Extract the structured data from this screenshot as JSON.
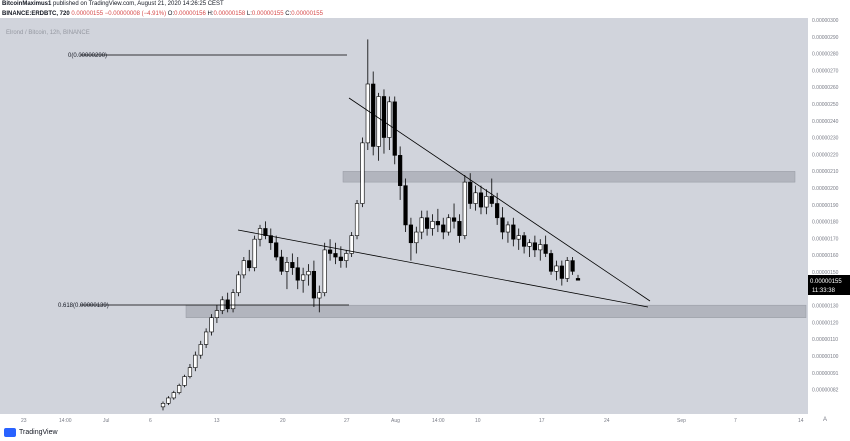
{
  "header": {
    "author": "BitcoinMaximus1",
    "published_text": "published on TradingView.com, August 21, 2020 14:26:25 CEST",
    "symbol": "BINANCE:ERDBTC, 720",
    "price": "0.00000155",
    "change": "−0.00000008 (−4.91%)",
    "open_label": "O:",
    "open": "0.00000156",
    "high_label": "H:",
    "high": "0.00000158",
    "low_label": "L:",
    "low": "0.00000155",
    "close_label": "C:",
    "close": "0.00000155"
  },
  "legend": {
    "title": "Elrond / Bitcoin, 12h, BINANCE"
  },
  "fib": {
    "top_label": "0(0.00000290)",
    "bottom_label": "0.618(0.00000139)"
  },
  "price_badge": {
    "value": "0.00000155",
    "countdown": "11:33:38"
  },
  "footer": {
    "brand": "TradingView"
  },
  "colors": {
    "up": "#ffffff",
    "down": "#000000",
    "background": "#d1d4dc",
    "zone": "#b2b5be",
    "price_badge": "#000000"
  },
  "chart_data": {
    "type": "candlestick",
    "title": "Elrond / Bitcoin, 12h, BINANCE",
    "price_axis": {
      "ticks": [
        "0.00000300",
        "0.00000290",
        "0.00000280",
        "0.00000270",
        "0.00000260",
        "0.00000250",
        "0.00000240",
        "0.00000230",
        "0.00000220",
        "0.00000210",
        "0.00000200",
        "0.00000190",
        "0.00000180",
        "0.00000170",
        "0.00000160",
        "0.00000150",
        "0.00000140",
        "0.00000130",
        "0.00000120",
        "0.00000110",
        "0.00000100",
        "0.00000091",
        "0.00000082"
      ],
      "ylim": [
        8e-07,
        3.02e-06
      ]
    },
    "time_axis": {
      "ticks": [
        "23",
        "14:00",
        "Jul",
        "6",
        "13",
        "20",
        "27",
        "Aug",
        "14:00",
        "10",
        "17",
        "24",
        "Sep",
        "7",
        "14"
      ]
    },
    "candles": [
      [
        8.4e-07,
        8.7e-07,
        8.2e-07,
        8.6e-07
      ],
      [
        8.6e-07,
        9e-07,
        8.5e-07,
        8.9e-07
      ],
      [
        8.9e-07,
        9.3e-07,
        8.8e-07,
        9.2e-07
      ],
      [
        9.2e-07,
        9.7e-07,
        9.1e-07,
        9.6e-07
      ],
      [
        9.6e-07,
        1.02e-06,
        9.5e-07,
        1.01e-06
      ],
      [
        1.01e-06,
        1.08e-06,
        1e-06,
        1.06e-06
      ],
      [
        1.06e-06,
        1.15e-06,
        1.04e-06,
        1.13e-06
      ],
      [
        1.13e-06,
        1.21e-06,
        1.11e-06,
        1.19e-06
      ],
      [
        1.19e-06,
        1.28e-06,
        1.17e-06,
        1.26e-06
      ],
      [
        1.26e-06,
        1.36e-06,
        1.24e-06,
        1.34e-06
      ],
      [
        1.34e-06,
        1.41e-06,
        1.31e-06,
        1.38e-06
      ],
      [
        1.38e-06,
        1.46e-06,
        1.36e-06,
        1.44e-06
      ],
      [
        1.44e-06,
        1.48e-06,
        1.37e-06,
        1.39e-06
      ],
      [
        1.39e-06,
        1.5e-06,
        1.37e-06,
        1.48e-06
      ],
      [
        1.48e-06,
        1.6e-06,
        1.46e-06,
        1.58e-06
      ],
      [
        1.58e-06,
        1.68e-06,
        1.56e-06,
        1.66e-06
      ],
      [
        1.66e-06,
        1.72e-06,
        1.6e-06,
        1.62e-06
      ],
      [
        1.62e-06,
        1.8e-06,
        1.6e-06,
        1.78e-06
      ],
      [
        1.78e-06,
        1.86e-06,
        1.74e-06,
        1.84e-06
      ],
      [
        1.84e-06,
        1.88e-06,
        1.78e-06,
        1.8e-06
      ],
      [
        1.8e-06,
        1.84e-06,
        1.72e-06,
        1.76e-06
      ],
      [
        1.76e-06,
        1.8e-06,
        1.66e-06,
        1.68e-06
      ],
      [
        1.68e-06,
        1.72e-06,
        1.58e-06,
        1.6e-06
      ],
      [
        1.6e-06,
        1.68e-06,
        1.5e-06,
        1.65e-06
      ],
      [
        1.65e-06,
        1.7e-06,
        1.58e-06,
        1.62e-06
      ],
      [
        1.62e-06,
        1.68e-06,
        1.5e-06,
        1.55e-06
      ],
      [
        1.55e-06,
        1.62e-06,
        1.48e-06,
        1.58e-06
      ],
      [
        1.58e-06,
        1.64e-06,
        1.52e-06,
        1.6e-06
      ],
      [
        1.6e-06,
        1.66e-06,
        1.4e-06,
        1.45e-06
      ],
      [
        1.45e-06,
        1.52e-06,
        1.37e-06,
        1.48e-06
      ],
      [
        1.48e-06,
        1.76e-06,
        1.46e-06,
        1.72e-06
      ],
      [
        1.72e-06,
        1.78e-06,
        1.66e-06,
        1.7e-06
      ],
      [
        1.7e-06,
        1.76e-06,
        1.64e-06,
        1.68e-06
      ],
      [
        1.68e-06,
        1.74e-06,
        1.62e-06,
        1.66e-06
      ],
      [
        1.66e-06,
        1.72e-06,
        1.62e-06,
        1.7e-06
      ],
      [
        1.7e-06,
        1.82e-06,
        1.68e-06,
        1.8e-06
      ],
      [
        1.8e-06,
        2e-06,
        1.78e-06,
        1.98e-06
      ],
      [
        1.98e-06,
        2.35e-06,
        1.96e-06,
        2.32e-06
      ],
      [
        2.32e-06,
        2.9e-06,
        2.28e-06,
        2.65e-06
      ],
      [
        2.65e-06,
        2.72e-06,
        2.25e-06,
        2.3e-06
      ],
      [
        2.3e-06,
        2.6e-06,
        2.22e-06,
        2.58e-06
      ],
      [
        2.58e-06,
        2.62e-06,
        2.26e-06,
        2.35e-06
      ],
      [
        2.35e-06,
        2.58e-06,
        2.28e-06,
        2.55e-06
      ],
      [
        2.55e-06,
        2.58e-06,
        2.2e-06,
        2.25e-06
      ],
      [
        2.25e-06,
        2.3e-06,
        2e-06,
        2.08e-06
      ],
      [
        2.08e-06,
        2.12e-06,
        1.82e-06,
        1.86e-06
      ],
      [
        1.86e-06,
        1.9e-06,
        1.66e-06,
        1.76e-06
      ],
      [
        1.76e-06,
        1.85e-06,
        1.7e-06,
        1.82e-06
      ],
      [
        1.82e-06,
        1.94e-06,
        1.78e-06,
        1.9e-06
      ],
      [
        1.9e-06,
        1.94e-06,
        1.8e-06,
        1.84e-06
      ],
      [
        1.84e-06,
        1.92e-06,
        1.8e-06,
        1.88e-06
      ],
      [
        1.88e-06,
        1.95e-06,
        1.82e-06,
        1.86e-06
      ],
      [
        1.86e-06,
        1.9e-06,
        1.78e-06,
        1.82e-06
      ],
      [
        1.82e-06,
        1.92e-06,
        1.8e-06,
        1.9e-06
      ],
      [
        1.9e-06,
        1.98e-06,
        1.84e-06,
        1.88e-06
      ],
      [
        1.88e-06,
        1.92e-06,
        1.76e-06,
        1.8e-06
      ],
      [
        1.8e-06,
        2.14e-06,
        1.78e-06,
        2.1e-06
      ],
      [
        2.1e-06,
        2.15e-06,
        1.95e-06,
        1.98e-06
      ],
      [
        1.98e-06,
        2.08e-06,
        1.94e-06,
        2.04e-06
      ],
      [
        2.04e-06,
        2.08e-06,
        1.92e-06,
        1.96e-06
      ],
      [
        1.96e-06,
        2.06e-06,
        1.92e-06,
        2.02e-06
      ],
      [
        2.02e-06,
        2.12e-06,
        1.96e-06,
        1.98e-06
      ],
      [
        1.98e-06,
        2.04e-06,
        1.86e-06,
        1.9e-06
      ],
      [
        1.9e-06,
        1.96e-06,
        1.78e-06,
        1.82e-06
      ],
      [
        1.82e-06,
        1.88e-06,
        1.76e-06,
        1.86e-06
      ],
      [
        1.86e-06,
        1.9e-06,
        1.74e-06,
        1.78e-06
      ],
      [
        1.78e-06,
        1.84e-06,
        1.72e-06,
        1.8e-06
      ],
      [
        1.8e-06,
        1.82e-06,
        1.7e-06,
        1.74e-06
      ],
      [
        1.74e-06,
        1.78e-06,
        1.68e-06,
        1.76e-06
      ],
      [
        1.76e-06,
        1.8e-06,
        1.68e-06,
        1.72e-06
      ],
      [
        1.72e-06,
        1.78e-06,
        1.66e-06,
        1.75e-06
      ],
      [
        1.75e-06,
        1.8e-06,
        1.68e-06,
        1.7e-06
      ],
      [
        1.7e-06,
        1.72e-06,
        1.58e-06,
        1.6e-06
      ],
      [
        1.6e-06,
        1.66e-06,
        1.55e-06,
        1.63e-06
      ],
      [
        1.63e-06,
        1.66e-06,
        1.52e-06,
        1.56e-06
      ],
      [
        1.56e-06,
        1.68e-06,
        1.54e-06,
        1.66e-06
      ],
      [
        1.66e-06,
        1.68e-06,
        1.58e-06,
        1.6e-06
      ],
      [
        1.56e-06,
        1.58e-06,
        1.55e-06,
        1.55e-06
      ]
    ]
  }
}
